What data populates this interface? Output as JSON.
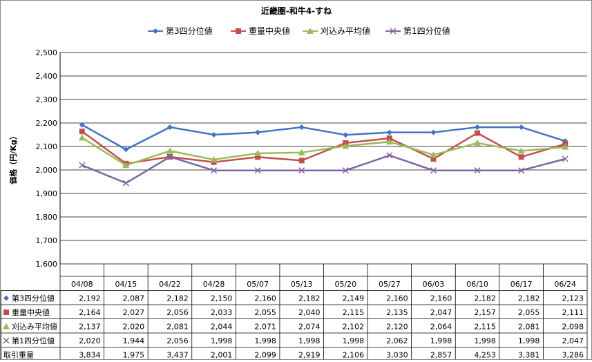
{
  "chart_data": {
    "type": "line",
    "title": "近畿圏-和牛4-すね",
    "ylabel": "価格（円/Kg）",
    "xlabel": "",
    "ylim": [
      1600,
      2500
    ],
    "yticks": [
      1600,
      1700,
      1800,
      1900,
      2000,
      2100,
      2200,
      2300,
      2400,
      2500
    ],
    "ytick_labels": [
      "1,600",
      "1,700",
      "1,800",
      "1,900",
      "2,000",
      "2,100",
      "2,200",
      "2,300",
      "2,400",
      "2,500"
    ],
    "grid": true,
    "legend_position": "top",
    "categories": [
      "04/08",
      "04/15",
      "04/22",
      "04/28",
      "05/07",
      "05/13",
      "05/20",
      "05/27",
      "06/03",
      "06/10",
      "06/17",
      "06/24"
    ],
    "series": [
      {
        "name": "第3四分位値",
        "color": "#4472C4",
        "marker": "diamond",
        "values": [
          2192,
          2087,
          2182,
          2150,
          2160,
          2182,
          2149,
          2160,
          2160,
          2182,
          2182,
          2123
        ]
      },
      {
        "name": "重量中央値",
        "color": "#C0504D",
        "marker": "square",
        "values": [
          2164,
          2027,
          2056,
          2033,
          2055,
          2040,
          2115,
          2135,
          2047,
          2157,
          2055,
          2111
        ]
      },
      {
        "name": "刈込み平均値",
        "color": "#9BBB59",
        "marker": "triangle",
        "values": [
          2137,
          2020,
          2081,
          2044,
          2071,
          2074,
          2102,
          2120,
          2064,
          2115,
          2081,
          2098
        ]
      },
      {
        "name": "第1四分位値",
        "color": "#8064A2",
        "marker": "x",
        "values": [
          2020,
          1944,
          2056,
          1998,
          1998,
          1998,
          1998,
          2062,
          1998,
          1998,
          1998,
          2047
        ]
      }
    ],
    "table": {
      "rows": [
        {
          "label": "第3四分位値",
          "series_index": 0,
          "values": [
            "2,192",
            "2,087",
            "2,182",
            "2,150",
            "2,160",
            "2,182",
            "2,149",
            "2,160",
            "2,160",
            "2,182",
            "2,182",
            "2,123"
          ]
        },
        {
          "label": "重量中央値",
          "series_index": 1,
          "values": [
            "2,164",
            "2,027",
            "2,056",
            "2,033",
            "2,055",
            "2,040",
            "2,115",
            "2,135",
            "2,047",
            "2,157",
            "2,055",
            "2,111"
          ]
        },
        {
          "label": "刈込み平均値",
          "series_index": 2,
          "values": [
            "2,137",
            "2,020",
            "2,081",
            "2,044",
            "2,071",
            "2,074",
            "2,102",
            "2,120",
            "2,064",
            "2,115",
            "2,081",
            "2,098"
          ]
        },
        {
          "label": "第1四分位値",
          "series_index": 3,
          "values": [
            "2,020",
            "1,944",
            "2,056",
            "1,998",
            "1,998",
            "1,998",
            "1,998",
            "2,062",
            "1,998",
            "1,998",
            "1,998",
            "2,047"
          ]
        },
        {
          "label": "取引重量",
          "series_index": null,
          "values": [
            "3,834",
            "1,975",
            "3,437",
            "2,001",
            "2,099",
            "2,919",
            "2,106",
            "3,030",
            "2,857",
            "4,253",
            "3,381",
            "3,286"
          ]
        }
      ]
    }
  }
}
